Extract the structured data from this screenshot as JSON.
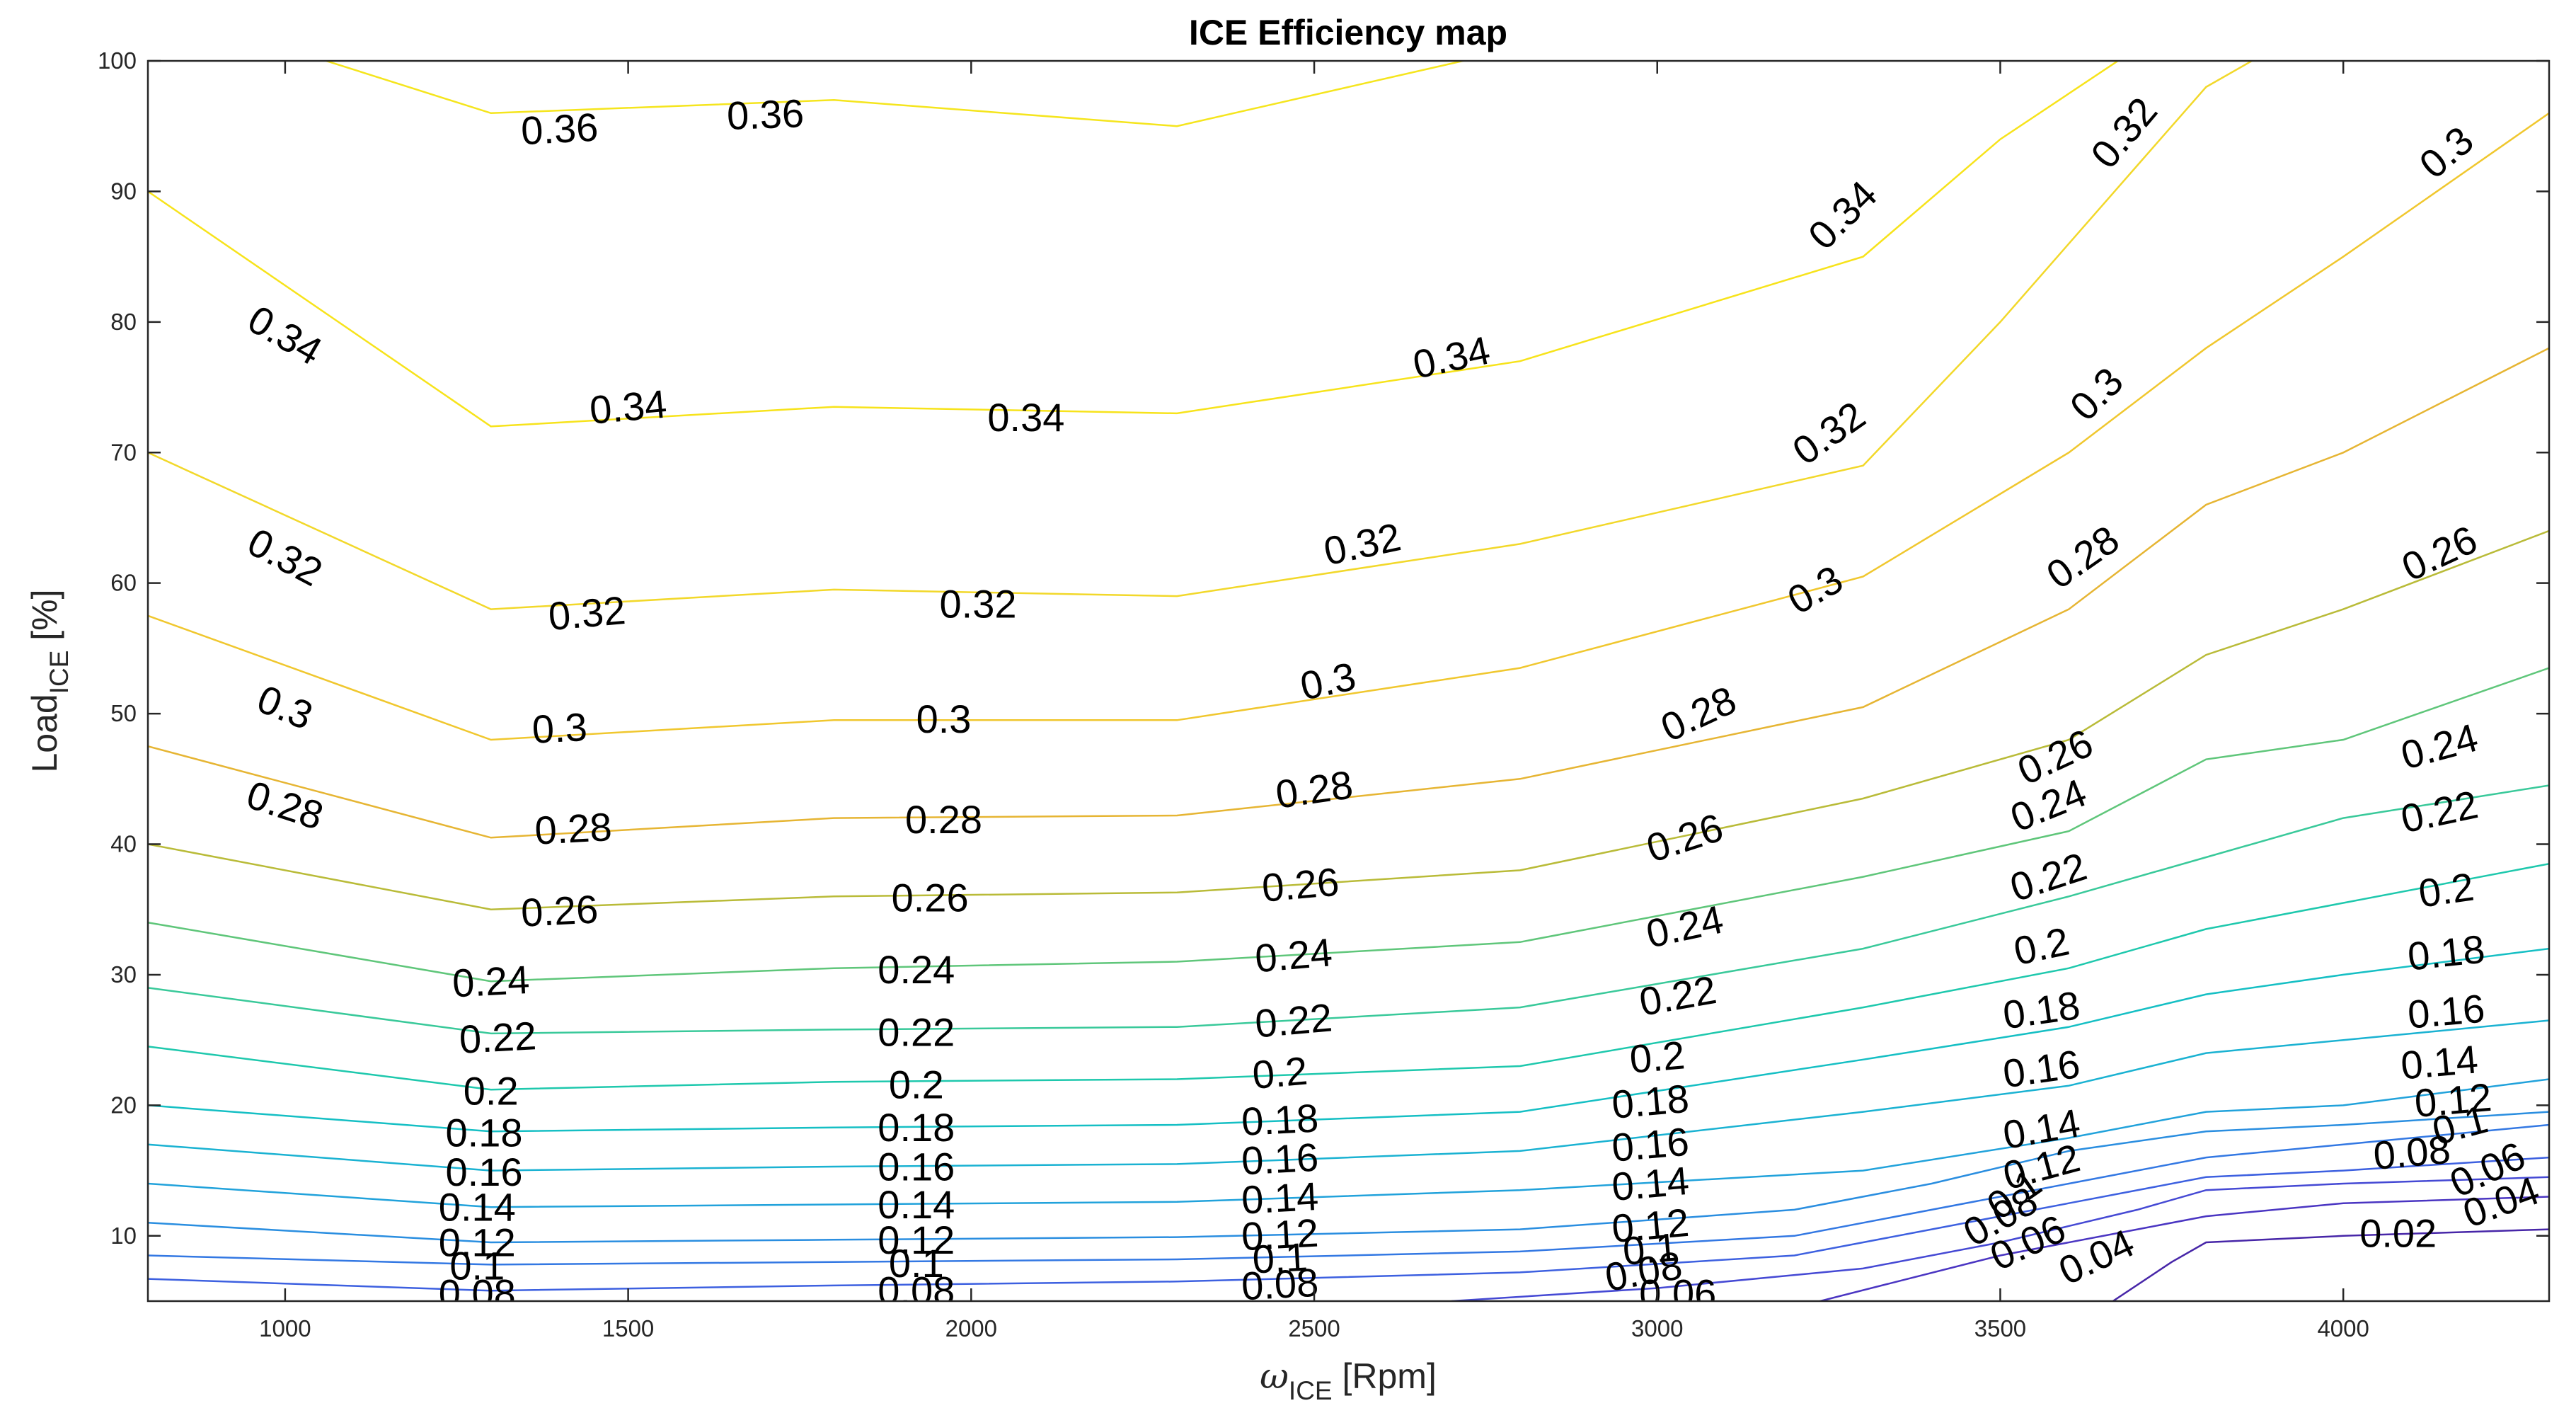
{
  "chart_data": {
    "type": "contour",
    "title": "ICE Efficiency map",
    "xlabel_symbol": "ω",
    "xlabel_sub": "ICE",
    "xlabel_unit": " [Rpm]",
    "ylabel_main": "Load",
    "ylabel_sub": "ICE",
    "ylabel_unit": " [%]",
    "xlim": [
      800,
      4300
    ],
    "ylim": [
      5,
      100
    ],
    "xticks": [
      1000,
      1500,
      2000,
      2500,
      3000,
      3500,
      4000
    ],
    "yticks": [
      10,
      20,
      30,
      40,
      50,
      60,
      70,
      80,
      90,
      100
    ],
    "contours": [
      {
        "level": 0.36,
        "color": "#f5e51d",
        "points": [
          [
            1000,
            101
          ],
          [
            1300,
            96
          ],
          [
            1800,
            97
          ],
          [
            2300,
            95
          ],
          [
            2800,
            101
          ]
        ],
        "labels": [
          [
            1400,
            94.8,
            -3
          ],
          [
            1700,
            95.9,
            -2
          ]
        ]
      },
      {
        "level": 0.34,
        "color": "#f7e31b",
        "points": [
          [
            800,
            90
          ],
          [
            1300,
            72
          ],
          [
            1800,
            73.5
          ],
          [
            2300,
            73
          ],
          [
            2800,
            77
          ],
          [
            3300,
            85
          ],
          [
            3500,
            94
          ],
          [
            3700,
            101
          ]
        ],
        "labels": [
          [
            1000,
            79,
            30
          ],
          [
            1500,
            73.5,
            -5
          ],
          [
            2080,
            72.7,
            0
          ],
          [
            2700,
            77.3,
            -12
          ],
          [
            3270,
            88.2,
            -45
          ]
        ]
      },
      {
        "level": 0.32,
        "color": "#f2d82a",
        "points": [
          [
            800,
            70
          ],
          [
            1300,
            58
          ],
          [
            1800,
            59.5
          ],
          [
            2300,
            59
          ],
          [
            2800,
            63
          ],
          [
            3300,
            69
          ],
          [
            3500,
            80
          ],
          [
            3700,
            92
          ],
          [
            3800,
            98
          ],
          [
            3900,
            101
          ]
        ],
        "labels": [
          [
            1000,
            62,
            28
          ],
          [
            1440,
            57.7,
            -5
          ],
          [
            2010,
            58.4,
            0
          ],
          [
            2570,
            63,
            -12
          ],
          [
            3250,
            71.5,
            -35
          ],
          [
            3680,
            94.5,
            -50
          ]
        ]
      },
      {
        "level": 0.3,
        "color": "#f0c72e",
        "points": [
          [
            800,
            57.5
          ],
          [
            1300,
            48
          ],
          [
            1800,
            49.5
          ],
          [
            2300,
            49.5
          ],
          [
            2800,
            53.5
          ],
          [
            3300,
            60.5
          ],
          [
            3600,
            70
          ],
          [
            3800,
            78
          ],
          [
            4000,
            85
          ],
          [
            4300,
            96
          ]
        ],
        "labels": [
          [
            1000,
            50.5,
            22
          ],
          [
            1400,
            48.9,
            -3
          ],
          [
            1960,
            49.6,
            0
          ],
          [
            2520,
            52.5,
            -12
          ],
          [
            3230,
            59.5,
            -30
          ],
          [
            3640,
            74.5,
            -45
          ],
          [
            4150,
            93,
            -40
          ]
        ]
      },
      {
        "level": 0.28,
        "color": "#e6b533",
        "points": [
          [
            800,
            47.5
          ],
          [
            1300,
            40.5
          ],
          [
            1800,
            42
          ],
          [
            2300,
            42.2
          ],
          [
            2800,
            45
          ],
          [
            3300,
            50.5
          ],
          [
            3600,
            58
          ],
          [
            3800,
            66
          ],
          [
            4000,
            70
          ],
          [
            4300,
            78
          ]
        ],
        "labels": [
          [
            1000,
            43,
            18
          ],
          [
            1420,
            41.2,
            -3
          ],
          [
            1960,
            41.9,
            0
          ],
          [
            2500,
            44.2,
            -8
          ],
          [
            3060,
            50,
            -25
          ],
          [
            3620,
            62,
            -35
          ]
        ]
      },
      {
        "level": 0.26,
        "color": "#b9bb38",
        "points": [
          [
            800,
            40
          ],
          [
            1300,
            35
          ],
          [
            1800,
            36
          ],
          [
            2300,
            36.3
          ],
          [
            2800,
            38
          ],
          [
            3300,
            43.5
          ],
          [
            3600,
            48
          ],
          [
            3800,
            54.5
          ],
          [
            4000,
            58
          ],
          [
            4300,
            64
          ]
        ],
        "labels": [
          [
            1400,
            34.9,
            -3
          ],
          [
            1940,
            35.9,
            0
          ],
          [
            2480,
            36.9,
            -5
          ],
          [
            3040,
            40.5,
            -18
          ],
          [
            3580,
            46.7,
            -25
          ],
          [
            4140,
            62.3,
            -25
          ]
        ]
      },
      {
        "level": 0.24,
        "color": "#5fc67a",
        "points": [
          [
            800,
            34
          ],
          [
            1300,
            29.5
          ],
          [
            1800,
            30.5
          ],
          [
            2300,
            31
          ],
          [
            2800,
            32.5
          ],
          [
            3300,
            37.5
          ],
          [
            3600,
            41
          ],
          [
            3800,
            46.5
          ],
          [
            4000,
            48
          ],
          [
            4300,
            53.5
          ]
        ],
        "labels": [
          [
            1300,
            29.5,
            -3
          ],
          [
            1920,
            30.4,
            0
          ],
          [
            2470,
            31.5,
            -5
          ],
          [
            3040,
            33.7,
            -12
          ],
          [
            3570,
            43,
            -22
          ],
          [
            4140,
            47.5,
            -15
          ]
        ]
      },
      {
        "level": 0.22,
        "color": "#39c99a",
        "points": [
          [
            800,
            29
          ],
          [
            1300,
            25.5
          ],
          [
            1800,
            25.8
          ],
          [
            2300,
            26
          ],
          [
            2800,
            27.5
          ],
          [
            3300,
            32
          ],
          [
            3600,
            36
          ],
          [
            3800,
            39
          ],
          [
            4000,
            42
          ],
          [
            4300,
            44.5
          ]
        ],
        "labels": [
          [
            1310,
            25.2,
            -3
          ],
          [
            1920,
            25.6,
            0
          ],
          [
            2470,
            26.5,
            -5
          ],
          [
            3030,
            28.4,
            -10
          ],
          [
            3570,
            37.5,
            -18
          ],
          [
            4140,
            42.5,
            -12
          ]
        ]
      },
      {
        "level": 0.2,
        "color": "#1ec8ad",
        "points": [
          [
            800,
            24.5
          ],
          [
            1300,
            21.2
          ],
          [
            1800,
            21.8
          ],
          [
            2300,
            22
          ],
          [
            2800,
            23
          ],
          [
            3300,
            27.5
          ],
          [
            3600,
            30.5
          ],
          [
            3800,
            33.5
          ],
          [
            4000,
            35.5
          ],
          [
            4300,
            38.5
          ]
        ],
        "labels": [
          [
            1300,
            21.1,
            0
          ],
          [
            1920,
            21.6,
            0
          ],
          [
            2450,
            22.5,
            -5
          ],
          [
            3000,
            23.7,
            -5
          ],
          [
            3560,
            32.2,
            -12
          ],
          [
            4150,
            36.5,
            -8
          ]
        ]
      },
      {
        "level": 0.18,
        "color": "#15bfc4",
        "points": [
          [
            800,
            20
          ],
          [
            1300,
            18
          ],
          [
            1800,
            18.3
          ],
          [
            2300,
            18.5
          ],
          [
            2800,
            19.5
          ],
          [
            3300,
            23.5
          ],
          [
            3600,
            26
          ],
          [
            3800,
            28.5
          ],
          [
            4000,
            30
          ],
          [
            4300,
            32
          ]
        ],
        "labels": [
          [
            1290,
            17.9,
            0
          ],
          [
            1920,
            18.3,
            0
          ],
          [
            2450,
            18.9,
            -3
          ],
          [
            2990,
            20.3,
            -5
          ],
          [
            3560,
            27.3,
            -8
          ],
          [
            4150,
            31.7,
            -6
          ]
        ]
      },
      {
        "level": 0.16,
        "color": "#1ab2d2",
        "points": [
          [
            800,
            17
          ],
          [
            1300,
            15
          ],
          [
            1800,
            15.3
          ],
          [
            2300,
            15.5
          ],
          [
            2800,
            16.5
          ],
          [
            3300,
            19.5
          ],
          [
            3600,
            21.5
          ],
          [
            3800,
            24
          ],
          [
            4000,
            25
          ],
          [
            4300,
            26.5
          ]
        ],
        "labels": [
          [
            1290,
            14.9,
            0
          ],
          [
            1920,
            15.3,
            0
          ],
          [
            2450,
            15.9,
            -3
          ],
          [
            2990,
            17,
            -5
          ],
          [
            3560,
            22.8,
            -8
          ],
          [
            4150,
            27.2,
            -5
          ]
        ]
      },
      {
        "level": 0.14,
        "color": "#21a2db",
        "points": [
          [
            800,
            14
          ],
          [
            1300,
            12.2
          ],
          [
            1800,
            12.4
          ],
          [
            2300,
            12.6
          ],
          [
            2800,
            13.5
          ],
          [
            3300,
            15
          ],
          [
            3600,
            17.5
          ],
          [
            3800,
            19.5
          ],
          [
            4000,
            20
          ],
          [
            4300,
            22
          ]
        ],
        "labels": [
          [
            1280,
            12.2,
            0
          ],
          [
            1920,
            12.4,
            0
          ],
          [
            2450,
            12.9,
            -3
          ],
          [
            2990,
            14,
            -5
          ],
          [
            3560,
            18.2,
            -10
          ],
          [
            4140,
            23.3,
            -5
          ]
        ]
      },
      {
        "level": 0.12,
        "color": "#2a8ee0",
        "points": [
          [
            800,
            11
          ],
          [
            1300,
            9.5
          ],
          [
            1800,
            9.7
          ],
          [
            2300,
            9.9
          ],
          [
            2800,
            10.5
          ],
          [
            3200,
            12
          ],
          [
            3400,
            14
          ],
          [
            3600,
            16.5
          ],
          [
            3800,
            18
          ],
          [
            4000,
            18.5
          ],
          [
            4300,
            19.5
          ]
        ],
        "labels": [
          [
            1280,
            9.5,
            0
          ],
          [
            1920,
            9.7,
            0
          ],
          [
            2450,
            10.1,
            -3
          ],
          [
            2990,
            10.8,
            -5
          ],
          [
            3560,
            15.3,
            -15
          ],
          [
            4160,
            20.4,
            -5
          ]
        ]
      },
      {
        "level": 0.1,
        "color": "#3378e3",
        "points": [
          [
            800,
            8.5
          ],
          [
            1300,
            7.8
          ],
          [
            1800,
            8
          ],
          [
            2300,
            8.2
          ],
          [
            2800,
            8.8
          ],
          [
            3200,
            10
          ],
          [
            3400,
            12
          ],
          [
            3600,
            14
          ],
          [
            3800,
            16
          ],
          [
            4000,
            17
          ],
          [
            4300,
            18.5
          ]
        ],
        "labels": [
          [
            1280,
            7.7,
            0
          ],
          [
            1920,
            7.9,
            0
          ],
          [
            2450,
            8.3,
            -3
          ],
          [
            2990,
            9,
            -5
          ],
          [
            3520,
            13.2,
            -35
          ],
          [
            4170,
            18.5,
            -15
          ]
        ]
      },
      {
        "level": 0.08,
        "color": "#3d60e0",
        "points": [
          [
            800,
            6.7
          ],
          [
            1300,
            5.8
          ],
          [
            1800,
            6.2
          ],
          [
            2300,
            6.5
          ],
          [
            2800,
            7.2
          ],
          [
            3200,
            8.5
          ],
          [
            3400,
            10.5
          ],
          [
            3600,
            12.5
          ],
          [
            3800,
            14.5
          ],
          [
            4000,
            15
          ],
          [
            4300,
            16
          ]
        ],
        "labels": [
          [
            1280,
            5.6,
            0
          ],
          [
            1920,
            5.8,
            0
          ],
          [
            2450,
            6.3,
            -3
          ],
          [
            2980,
            7.3,
            -10
          ],
          [
            3500,
            11.5,
            -30
          ],
          [
            4100,
            16.4,
            -5
          ]
        ]
      },
      {
        "level": 0.06,
        "color": "#4549d4",
        "points": [
          [
            2700,
            5
          ],
          [
            3000,
            6
          ],
          [
            3300,
            7.5
          ],
          [
            3500,
            9.5
          ],
          [
            3700,
            12
          ],
          [
            3800,
            13.5
          ],
          [
            4000,
            14
          ],
          [
            4300,
            14.5
          ]
        ],
        "labels": [
          [
            3030,
            5.6,
            0
          ],
          [
            3540,
            9.5,
            -25
          ],
          [
            4210,
            15.1,
            -25
          ]
        ]
      },
      {
        "level": 0.04,
        "color": "#4a35c2",
        "points": [
          [
            3200,
            4.5
          ],
          [
            3350,
            6.5
          ],
          [
            3500,
            8.5
          ],
          [
            3700,
            10.5
          ],
          [
            3800,
            11.5
          ],
          [
            4000,
            12.5
          ],
          [
            4300,
            13
          ]
        ],
        "labels": [
          [
            3640,
            8.4,
            -25
          ],
          [
            4230,
            12.6,
            -20
          ]
        ]
      },
      {
        "level": 0.02,
        "color": "#4726a8",
        "points": [
          [
            3650,
            4.5
          ],
          [
            3750,
            8
          ],
          [
            3800,
            9.5
          ],
          [
            4000,
            10
          ],
          [
            4300,
            10.5
          ]
        ],
        "labels": [
          [
            4080,
            10.2,
            0
          ]
        ]
      }
    ]
  }
}
